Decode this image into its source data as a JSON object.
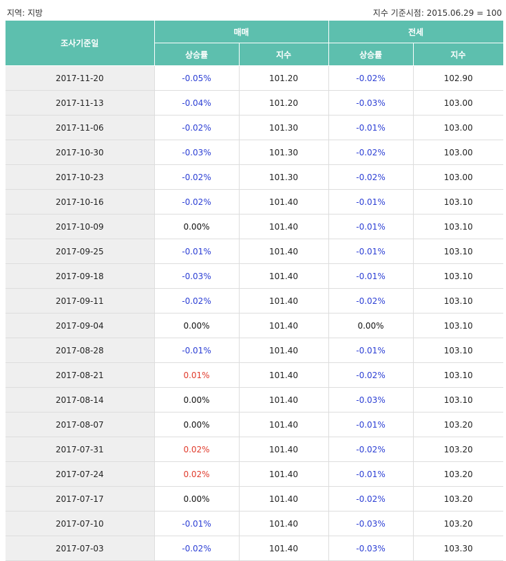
{
  "header": {
    "region_label": "지역: 지방",
    "index_base_label": "지수 기준시점: 2015.06.29 = 100"
  },
  "table": {
    "col_date": "조사기준일",
    "group_sale": "매매",
    "group_jeonse": "전세",
    "col_rate": "상승률",
    "col_index": "지수",
    "rows": [
      {
        "date": "2017-11-20",
        "sale_rate": "-0.05%",
        "sale_index": "101.20",
        "jeonse_rate": "-0.02%",
        "jeonse_index": "102.90"
      },
      {
        "date": "2017-11-13",
        "sale_rate": "-0.04%",
        "sale_index": "101.20",
        "jeonse_rate": "-0.03%",
        "jeonse_index": "103.00"
      },
      {
        "date": "2017-11-06",
        "sale_rate": "-0.02%",
        "sale_index": "101.30",
        "jeonse_rate": "-0.01%",
        "jeonse_index": "103.00"
      },
      {
        "date": "2017-10-30",
        "sale_rate": "-0.03%",
        "sale_index": "101.30",
        "jeonse_rate": "-0.02%",
        "jeonse_index": "103.00"
      },
      {
        "date": "2017-10-23",
        "sale_rate": "-0.02%",
        "sale_index": "101.30",
        "jeonse_rate": "-0.02%",
        "jeonse_index": "103.00"
      },
      {
        "date": "2017-10-16",
        "sale_rate": "-0.02%",
        "sale_index": "101.40",
        "jeonse_rate": "-0.01%",
        "jeonse_index": "103.10"
      },
      {
        "date": "2017-10-09",
        "sale_rate": "0.00%",
        "sale_index": "101.40",
        "jeonse_rate": "-0.01%",
        "jeonse_index": "103.10"
      },
      {
        "date": "2017-09-25",
        "sale_rate": "-0.01%",
        "sale_index": "101.40",
        "jeonse_rate": "-0.01%",
        "jeonse_index": "103.10"
      },
      {
        "date": "2017-09-18",
        "sale_rate": "-0.03%",
        "sale_index": "101.40",
        "jeonse_rate": "-0.01%",
        "jeonse_index": "103.10"
      },
      {
        "date": "2017-09-11",
        "sale_rate": "-0.02%",
        "sale_index": "101.40",
        "jeonse_rate": "-0.02%",
        "jeonse_index": "103.10"
      },
      {
        "date": "2017-09-04",
        "sale_rate": "0.00%",
        "sale_index": "101.40",
        "jeonse_rate": "0.00%",
        "jeonse_index": "103.10"
      },
      {
        "date": "2017-08-28",
        "sale_rate": "-0.01%",
        "sale_index": "101.40",
        "jeonse_rate": "-0.01%",
        "jeonse_index": "103.10"
      },
      {
        "date": "2017-08-21",
        "sale_rate": "0.01%",
        "sale_index": "101.40",
        "jeonse_rate": "-0.02%",
        "jeonse_index": "103.10"
      },
      {
        "date": "2017-08-14",
        "sale_rate": "0.00%",
        "sale_index": "101.40",
        "jeonse_rate": "-0.03%",
        "jeonse_index": "103.10"
      },
      {
        "date": "2017-08-07",
        "sale_rate": "0.00%",
        "sale_index": "101.40",
        "jeonse_rate": "-0.01%",
        "jeonse_index": "103.20"
      },
      {
        "date": "2017-07-31",
        "sale_rate": "0.02%",
        "sale_index": "101.40",
        "jeonse_rate": "-0.02%",
        "jeonse_index": "103.20"
      },
      {
        "date": "2017-07-24",
        "sale_rate": "0.02%",
        "sale_index": "101.40",
        "jeonse_rate": "-0.01%",
        "jeonse_index": "103.20"
      },
      {
        "date": "2017-07-17",
        "sale_rate": "0.00%",
        "sale_index": "101.40",
        "jeonse_rate": "-0.02%",
        "jeonse_index": "103.20"
      },
      {
        "date": "2017-07-10",
        "sale_rate": "-0.01%",
        "sale_index": "101.40",
        "jeonse_rate": "-0.03%",
        "jeonse_index": "103.20"
      },
      {
        "date": "2017-07-03",
        "sale_rate": "-0.02%",
        "sale_index": "101.40",
        "jeonse_rate": "-0.03%",
        "jeonse_index": "103.30"
      }
    ]
  },
  "colors": {
    "header_bg": "#5dbfae",
    "negative": "#2b3ed4",
    "positive": "#e03a2b",
    "date_bg": "#efefef"
  }
}
